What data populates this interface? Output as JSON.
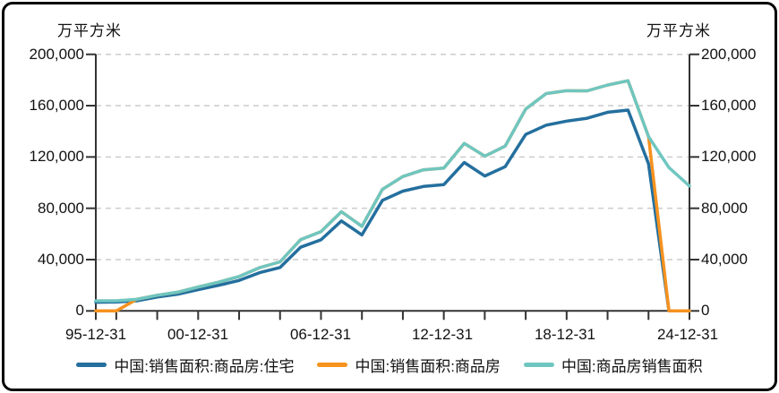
{
  "unit_label_left": "万平方米",
  "unit_label_right": "万平方米",
  "y_axis": {
    "tick_labels": [
      "200,000",
      "160,000",
      "120,000",
      "80,000",
      "40,000",
      "0"
    ]
  },
  "x_axis": {
    "tick_labels": [
      "95-12-31",
      "00-12-31",
      "06-12-31",
      "12-12-31",
      "18-12-31",
      "24-12-31"
    ]
  },
  "chart_data": {
    "type": "line",
    "title": "",
    "ylabel": "万平方米",
    "ylim": [
      0,
      200000
    ],
    "y_tick_step": 40000,
    "x_range": [
      "1995-12-31",
      "2024-12-31"
    ],
    "grid": "horizontal-dashed",
    "legend_position": "bottom",
    "x": [
      1995,
      1996,
      1997,
      1998,
      1999,
      2000,
      2001,
      2002,
      2003,
      2004,
      2005,
      2006,
      2007,
      2008,
      2009,
      2010,
      2011,
      2012,
      2013,
      2014,
      2015,
      2016,
      2017,
      2018,
      2019,
      2020,
      2021,
      2022,
      2023,
      2024
    ],
    "series": [
      {
        "name": "中国:销售面积:商品房:住宅",
        "color": "#246f9e",
        "values": [
          6787,
          6898,
          7864,
          10827,
          12998,
          16570,
          19939,
          23702,
          29779,
          33820,
          49588,
          55423,
          70136,
          59280,
          86185,
          93377,
          97030,
          98468,
          115723,
          105182,
          112406,
          137540,
          144789,
          147929,
          150144,
          154878,
          156532,
          114631,
          0,
          0
        ]
      },
      {
        "name": "中国:销售面积:商品房",
        "color": "#f6921e",
        "values": [
          0,
          0,
          9010,
          12185,
          14557,
          18637,
          22412,
          26808,
          33718,
          38232,
          55486,
          61857,
          77355,
          65970,
          94755,
          104765,
          109946,
          111304,
          130551,
          120649,
          128495,
          157349,
          169408,
          171654,
          171558,
          176086,
          179433,
          135837,
          0,
          0
        ]
      },
      {
        "name": "中国:商品房销售面积",
        "color": "#6fc6c0",
        "values": [
          7906,
          7900,
          9010,
          12185,
          14557,
          18637,
          22412,
          26808,
          33718,
          38232,
          55486,
          61857,
          77355,
          65970,
          94755,
          104765,
          109946,
          111304,
          130551,
          120649,
          128495,
          157349,
          169408,
          171654,
          171558,
          176086,
          179433,
          135837,
          111735,
          97385
        ]
      }
    ],
    "style": {
      "grid_color": "#cccccc",
      "axis_color": "#333333",
      "line_width": 3.5
    }
  }
}
